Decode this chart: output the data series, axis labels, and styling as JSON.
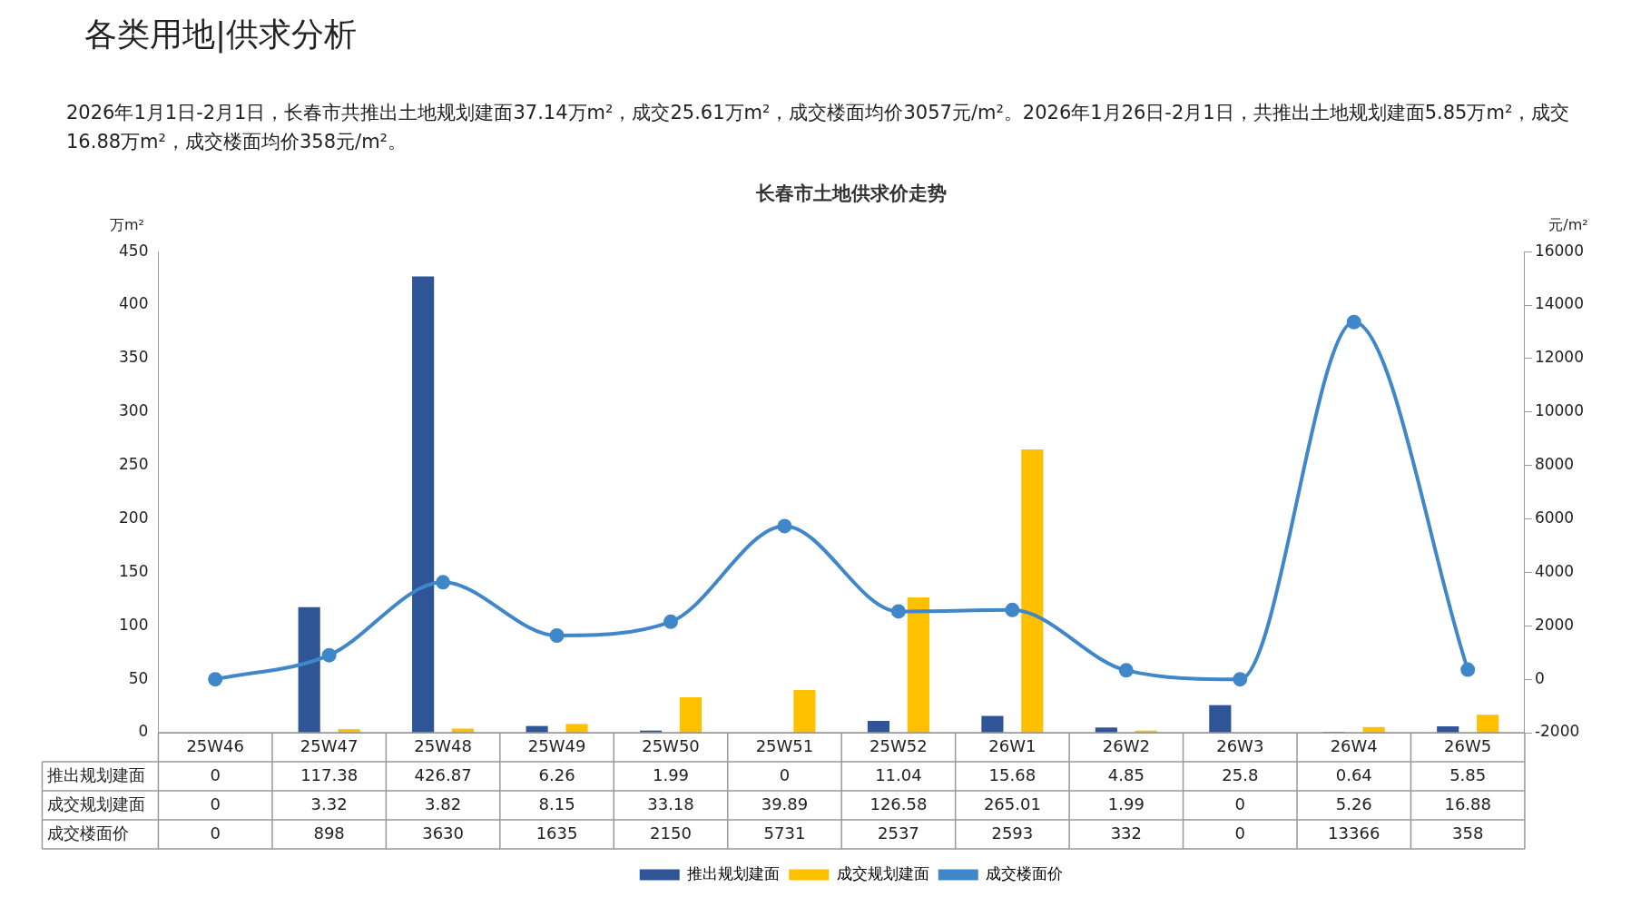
{
  "chart_data": {
    "type": "bar",
    "title": "长春市土地供求价走势",
    "subtitle": "2026年1月1日-2月1日，长春市共推出土地规划建面37.14万m²，成交25.61万m²，成交楼面均价3057元/m²。2026年1月26日-2月1日，共推出土地规划建面5.85万m²，成交16.88万m²，成交楼面均价358元/m²。",
    "annotations": [
      "各类用地|供求分析"
    ],
    "ylabel": "万m²",
    "y2label": "元/m²",
    "categories": [
      "25W46",
      "25W47",
      "25W48",
      "25W49",
      "25W50",
      "25W51",
      "25W52",
      "26W1",
      "26W2",
      "26W3",
      "26W4",
      "26W5"
    ],
    "series": [
      {
        "name": "推出规划建面",
        "color": "#2f5597",
        "values": [
          0,
          117.38,
          426.87,
          6.26,
          1.99,
          0,
          11.04,
          15.68,
          4.85,
          25.8,
          0.64,
          5.85
        ]
      },
      {
        "name": "成交规划建面",
        "color": "#ffc000",
        "values": [
          0,
          3.32,
          3.82,
          8.15,
          33.18,
          39.89,
          126.58,
          265.01,
          1.99,
          0,
          5.26,
          16.88
        ]
      },
      {
        "name": "成交楼面价",
        "type": "line",
        "axis": "y2",
        "color": "#3f87c9",
        "marker": "circle",
        "values": [
          0,
          898,
          3630,
          1635,
          2150,
          5731,
          2537,
          2593,
          332,
          0,
          13366,
          358
        ]
      }
    ],
    "ylim": [
      0,
      450
    ],
    "yticks": [
      0,
      50,
      100,
      150,
      200,
      250,
      300,
      350,
      400,
      450
    ],
    "y2lim": [
      -2000,
      16000
    ],
    "y2ticks": [
      -2000,
      0,
      2000,
      4000,
      6000,
      8000,
      10000,
      12000,
      14000,
      16000
    ],
    "data_labels": true,
    "legend": "bottom",
    "grid": false
  }
}
